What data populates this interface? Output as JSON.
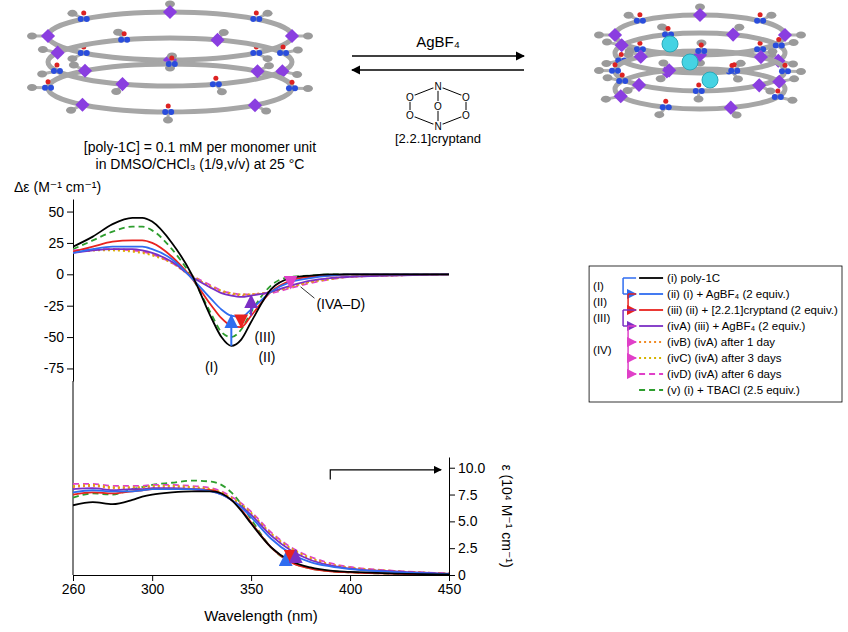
{
  "scheme": {
    "forward_reagent": "AgBF₄",
    "reverse_reagent": "[2.2.1]cryptand",
    "cryptand_atoms": [
      "N",
      "O",
      "O",
      "O",
      "O",
      "O",
      "N"
    ]
  },
  "chart_data": [
    {
      "type": "line",
      "subtitle": [
        "[poly-1C] = 0.1 mM per monomer unit",
        "in DMSO/CHCl₃ (1/9,v/v) at 25 °C"
      ],
      "y_label": "Δε (M⁻¹ cm⁻¹)",
      "x": [
        260,
        270,
        280,
        290,
        295,
        300,
        310,
        320,
        330,
        335,
        340,
        345,
        350,
        360,
        370,
        380,
        390,
        400,
        420,
        450
      ],
      "xlim": [
        260,
        450
      ],
      "ylim": [
        -85,
        60
      ],
      "yticks": [
        50,
        25,
        0,
        -25,
        -50,
        -75
      ],
      "tick_labels": "y",
      "legend": "right",
      "legend_groups": [
        "(I)",
        "(II)",
        "(III)",
        "(IV)"
      ],
      "annotations": [
        "(I)",
        "(II)",
        "(III)",
        "(IVA–D)"
      ],
      "series": [
        {
          "name": "(i) poly-1C",
          "color": "#000000",
          "line_style": "solid",
          "values": [
            22,
            30,
            40,
            45,
            45,
            42,
            25,
            0,
            -35,
            -50,
            -57,
            -52,
            -38,
            -12,
            -3,
            -1,
            0,
            0,
            0,
            0
          ]
        },
        {
          "name": "(ii) (i) + AgBF₄ (2 equiv.)",
          "color": "#2f6df0",
          "line_style": "solid",
          "values": [
            17,
            20,
            22,
            22,
            22,
            20,
            12,
            -3,
            -20,
            -28,
            -33,
            -34,
            -28,
            -14,
            -6,
            -3,
            -1,
            0,
            0,
            0
          ]
        },
        {
          "name": "(iii) (ii) + [2.2.1]cryptand (2 equiv.)",
          "color": "#e8231f",
          "line_style": "solid",
          "values": [
            18,
            22,
            26,
            27,
            27,
            25,
            14,
            -3,
            -25,
            -35,
            -41,
            -42,
            -33,
            -14,
            -5,
            -2,
            -1,
            0,
            0,
            0
          ]
        },
        {
          "name": "(ivA) (iii) + AgBF₄ (2 equiv.)",
          "color": "#7b2fc4",
          "line_style": "solid",
          "values": [
            17,
            19,
            20,
            20,
            19,
            17,
            10,
            -2,
            -11,
            -15,
            -17,
            -18,
            -17,
            -14,
            -9,
            -5,
            -3,
            -2,
            -1,
            0
          ]
        },
        {
          "name": "(ivB) (ivA) after 1 day",
          "color": "#f08a24",
          "line_style": "dotted",
          "values": [
            18,
            19,
            20,
            19,
            18,
            16,
            9,
            -2,
            -10,
            -14,
            -16,
            -17,
            -16,
            -14,
            -10,
            -6,
            -3,
            -2,
            -1,
            0
          ]
        },
        {
          "name": "(ivC) (ivA) after 3 days",
          "color": "#d6b400",
          "line_style": "dotted",
          "values": [
            18,
            19,
            19,
            18,
            17,
            15,
            9,
            -1,
            -10,
            -13,
            -15,
            -16,
            -16,
            -14,
            -10,
            -6,
            -4,
            -2,
            -1,
            0
          ]
        },
        {
          "name": "(ivD) (ivA) after 6 days",
          "color": "#e040c8",
          "line_style": "dashed",
          "values": [
            19,
            20,
            20,
            19,
            18,
            16,
            9,
            -1,
            -9,
            -13,
            -15,
            -16,
            -16,
            -15,
            -11,
            -7,
            -4,
            -2,
            -1,
            0
          ]
        },
        {
          "name": "(v) (i) + TBACl (2.5 equiv.)",
          "color": "#2e9e2e",
          "line_style": "dashed",
          "values": [
            20,
            27,
            34,
            38,
            38,
            35,
            20,
            -2,
            -32,
            -46,
            -50,
            -44,
            -30,
            -9,
            -2,
            -1,
            0,
            0,
            0,
            0
          ]
        }
      ]
    },
    {
      "type": "line",
      "x_label": "Wavelength (nm)",
      "y_label": "ε (10⁴ M⁻¹ cm⁻¹)",
      "x": [
        260,
        270,
        280,
        290,
        295,
        300,
        310,
        320,
        330,
        335,
        340,
        345,
        350,
        360,
        370,
        380,
        390,
        400,
        420,
        450
      ],
      "xlim": [
        260,
        450
      ],
      "xticks": [
        260,
        300,
        350,
        400,
        450
      ],
      "ylim": [
        0,
        11
      ],
      "yticks": [
        0,
        2.5,
        {
          "value": 5,
          "label": "5.0"
        },
        7.5,
        {
          "value": 10,
          "label": "10.0"
        }
      ],
      "series": [
        {
          "color": "#000000",
          "line_style": "solid",
          "values": [
            6.5,
            6.8,
            6.6,
            7.0,
            7.3,
            7.5,
            7.7,
            7.8,
            7.8,
            7.6,
            7.0,
            6.0,
            4.8,
            2.6,
            1.3,
            0.7,
            0.4,
            0.3,
            0.15,
            0.05
          ]
        },
        {
          "color": "#2f6df0",
          "line_style": "solid",
          "values": [
            7.7,
            7.9,
            7.8,
            7.8,
            7.9,
            8.0,
            8.0,
            8.0,
            7.8,
            7.5,
            7.0,
            6.3,
            5.4,
            3.4,
            2.0,
            1.2,
            0.8,
            0.55,
            0.3,
            0.1
          ]
        },
        {
          "color": "#e8231f",
          "line_style": "solid",
          "values": [
            7.5,
            7.7,
            7.6,
            7.8,
            7.9,
            8.0,
            8.0,
            8.0,
            7.9,
            7.6,
            7.0,
            6.1,
            4.9,
            2.6,
            1.2,
            0.6,
            0.35,
            0.25,
            0.12,
            0.05
          ]
        },
        {
          "color": "#7b2fc4",
          "line_style": "solid",
          "values": [
            8.0,
            8.1,
            7.9,
            8.0,
            8.0,
            8.1,
            8.1,
            8.0,
            7.8,
            7.5,
            7.0,
            6.4,
            5.6,
            3.7,
            2.3,
            1.4,
            0.9,
            0.6,
            0.35,
            0.12
          ]
        },
        {
          "color": "#f08a24",
          "line_style": "dotted",
          "values": [
            8.2,
            8.3,
            8.1,
            8.1,
            8.1,
            8.2,
            8.2,
            8.1,
            7.9,
            7.6,
            7.1,
            6.5,
            5.7,
            3.8,
            2.4,
            1.5,
            1.0,
            0.65,
            0.38,
            0.13
          ]
        },
        {
          "color": "#d6b400",
          "line_style": "dotted",
          "values": [
            8.3,
            8.4,
            8.2,
            8.2,
            8.2,
            8.3,
            8.3,
            8.2,
            8.0,
            7.7,
            7.2,
            6.6,
            5.8,
            3.9,
            2.5,
            1.6,
            1.0,
            0.7,
            0.4,
            0.14
          ]
        },
        {
          "color": "#e040c8",
          "line_style": "dashed",
          "values": [
            8.5,
            8.5,
            8.3,
            8.3,
            8.3,
            8.4,
            8.4,
            8.3,
            8.1,
            7.8,
            7.3,
            6.7,
            5.9,
            4.0,
            2.6,
            1.7,
            1.1,
            0.75,
            0.42,
            0.15
          ]
        },
        {
          "color": "#2e9e2e",
          "line_style": "dashed",
          "values": [
            7.2,
            7.6,
            7.5,
            8.0,
            8.2,
            8.4,
            8.6,
            8.8,
            8.7,
            8.4,
            7.7,
            6.6,
            5.2,
            2.6,
            1.2,
            0.6,
            0.35,
            0.25,
            0.12,
            0.05
          ]
        }
      ]
    }
  ]
}
